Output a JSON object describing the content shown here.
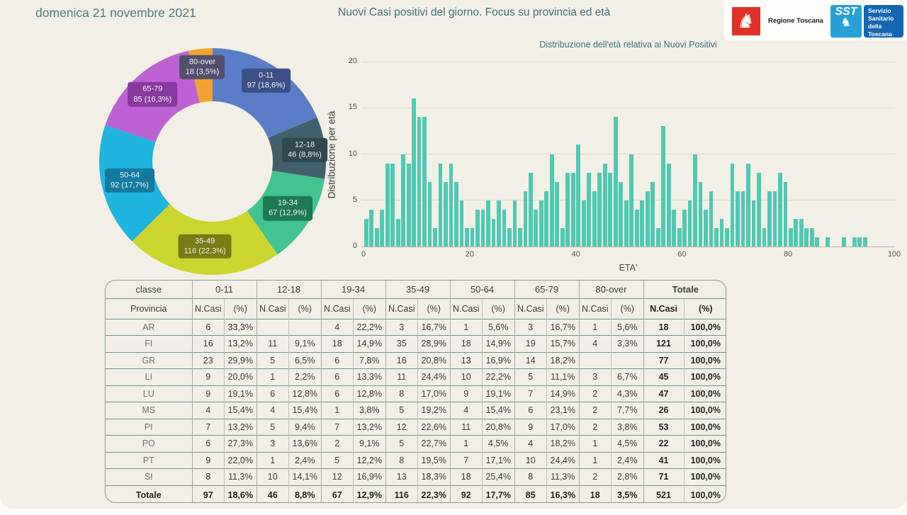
{
  "header": {
    "date_title": "domenica 21 novembre 2021",
    "subtitle": "Nuovi Casi positivi del giorno. Focus su provincia ed età",
    "logos": {
      "regione_label": "Regione Toscana",
      "sst_acronym": "SST",
      "sst_lines": [
        "Servizio",
        "Sanitario",
        "della",
        "Toscana"
      ]
    }
  },
  "colors": {
    "background": "#f2f0e6",
    "bar": "#4fc9b4",
    "accent_teal": "#3a7380",
    "regione_red": "#e33127",
    "sst_blue": "#27a0d8",
    "sst_dark_blue": "#1467b2"
  },
  "chart_data": [
    {
      "type": "pie",
      "subtype": "donut",
      "title": "",
      "total": 521,
      "segments": [
        {
          "label": "0-11",
          "value": 97,
          "pct": "18,6%",
          "color": "#5b7dc7",
          "label_bg": "#3d5086",
          "label_r": 137
        },
        {
          "label": "12-18",
          "value": 46,
          "pct": "8,8%",
          "color": "#42606b",
          "label_bg": "#2f474e",
          "label_r": 131
        },
        {
          "label": "19-34",
          "value": 67,
          "pct": "12,9%",
          "color": "#41c492",
          "label_bg": "#1d7a52",
          "label_r": 125
        },
        {
          "label": "35-49",
          "value": 116,
          "pct": "22,3%",
          "color": "#ccd52f",
          "label_bg": "#7a7b16",
          "label_r": 120
        },
        {
          "label": "50-64",
          "value": 92,
          "pct": "17,7%",
          "color": "#1fb5de",
          "label_bg": "#13799f",
          "label_r": 120
        },
        {
          "label": "65-79",
          "value": 85,
          "pct": "16,3%",
          "color": "#bd62d5",
          "label_bg": "#8a39a0",
          "label_r": 127
        },
        {
          "label": "80-over",
          "value": 18,
          "pct": "3,5%",
          "color": "#f0a42e",
          "label_bg": "#52506a",
          "label_r": 134
        }
      ]
    },
    {
      "type": "bar",
      "title": "Distribuzione dell'età relativa ai Nuovi Positivi",
      "xlabel": "ETA'",
      "ylabel": "Distribuzione per età",
      "xlim": [
        0,
        100
      ],
      "ylim": [
        0,
        20
      ],
      "xticks": [
        0,
        20,
        40,
        60,
        80,
        100
      ],
      "yticks": [
        0,
        5,
        10,
        15,
        20
      ],
      "grid": true,
      "x_age_start": 0,
      "values": [
        3,
        4,
        2,
        4,
        9,
        9,
        3,
        10,
        9,
        16,
        14,
        14,
        7,
        2,
        9,
        7,
        9,
        7,
        5,
        2,
        2,
        4,
        4,
        5,
        3,
        5,
        4,
        2,
        5,
        2,
        6,
        8,
        4,
        5,
        6,
        10,
        7,
        2,
        8,
        8,
        11,
        5,
        8,
        6,
        8,
        9,
        8,
        14,
        7,
        5,
        10,
        4,
        5,
        6,
        7,
        2,
        13,
        9,
        4,
        2,
        4,
        5,
        10,
        7,
        4,
        6,
        2,
        3,
        2,
        9,
        6,
        6,
        9,
        5,
        8,
        2,
        6,
        6,
        8,
        7,
        2,
        3,
        3,
        2,
        2,
        1,
        0,
        1,
        0,
        0,
        1,
        0,
        1,
        1,
        1
      ]
    }
  ],
  "table": {
    "corner_label": "classe",
    "row_header_label": "Provincia",
    "class_headers": [
      "0-11",
      "12-18",
      "19-34",
      "35-49",
      "50-64",
      "65-79",
      "80-over",
      "Totale"
    ],
    "sub_header_n": "N.Casi",
    "sub_header_pct": "(%)",
    "rows": [
      {
        "prov": "AR",
        "cells": [
          "6",
          "33,3%",
          "",
          "",
          "4",
          "22,2%",
          "3",
          "16,7%",
          "1",
          "5,6%",
          "3",
          "16,7%",
          "1",
          "5,6%",
          "18",
          "100,0%"
        ]
      },
      {
        "prov": "FI",
        "cells": [
          "16",
          "13,2%",
          "11",
          "9,1%",
          "18",
          "14,9%",
          "35",
          "28,9%",
          "18",
          "14,9%",
          "19",
          "15,7%",
          "4",
          "3,3%",
          "121",
          "100,0%"
        ]
      },
      {
        "prov": "GR",
        "cells": [
          "23",
          "29,9%",
          "5",
          "6,5%",
          "6",
          "7,8%",
          "16",
          "20,8%",
          "13",
          "16,9%",
          "14",
          "18,2%",
          "",
          "",
          "77",
          "100,0%"
        ]
      },
      {
        "prov": "LI",
        "cells": [
          "9",
          "20,0%",
          "1",
          "2,2%",
          "6",
          "13,3%",
          "11",
          "24,4%",
          "10",
          "22,2%",
          "5",
          "11,1%",
          "3",
          "6,7%",
          "45",
          "100,0%"
        ]
      },
      {
        "prov": "LU",
        "cells": [
          "9",
          "19,1%",
          "6",
          "12,8%",
          "6",
          "12,8%",
          "8",
          "17,0%",
          "9",
          "19,1%",
          "7",
          "14,9%",
          "2",
          "4,3%",
          "47",
          "100,0%"
        ]
      },
      {
        "prov": "MS",
        "cells": [
          "4",
          "15,4%",
          "4",
          "15,4%",
          "1",
          "3,8%",
          "5",
          "19,2%",
          "4",
          "15,4%",
          "6",
          "23,1%",
          "2",
          "7,7%",
          "26",
          "100,0%"
        ]
      },
      {
        "prov": "PI",
        "cells": [
          "7",
          "13,2%",
          "5",
          "9,4%",
          "7",
          "13,2%",
          "12",
          "22,6%",
          "11",
          "20,8%",
          "9",
          "17,0%",
          "2",
          "3,8%",
          "53",
          "100,0%"
        ]
      },
      {
        "prov": "PO",
        "cells": [
          "6",
          "27,3%",
          "3",
          "13,6%",
          "2",
          "9,1%",
          "5",
          "22,7%",
          "1",
          "4,5%",
          "4",
          "18,2%",
          "1",
          "4,5%",
          "22",
          "100,0%"
        ]
      },
      {
        "prov": "PT",
        "cells": [
          "9",
          "22,0%",
          "1",
          "2,4%",
          "5",
          "12,2%",
          "8",
          "19,5%",
          "7",
          "17,1%",
          "10",
          "24,4%",
          "1",
          "2,4%",
          "41",
          "100,0%"
        ]
      },
      {
        "prov": "SI",
        "cells": [
          "8",
          "11,3%",
          "10",
          "14,1%",
          "12",
          "16,9%",
          "13",
          "18,3%",
          "18",
          "25,4%",
          "8",
          "11,3%",
          "2",
          "2,8%",
          "71",
          "100,0%"
        ]
      }
    ],
    "total_row": {
      "prov": "Totale",
      "cells": [
        "97",
        "18,6%",
        "46",
        "8,8%",
        "67",
        "12,9%",
        "116",
        "22,3%",
        "92",
        "17,7%",
        "85",
        "16,3%",
        "18",
        "3,5%",
        "521",
        "100,0%"
      ]
    }
  }
}
